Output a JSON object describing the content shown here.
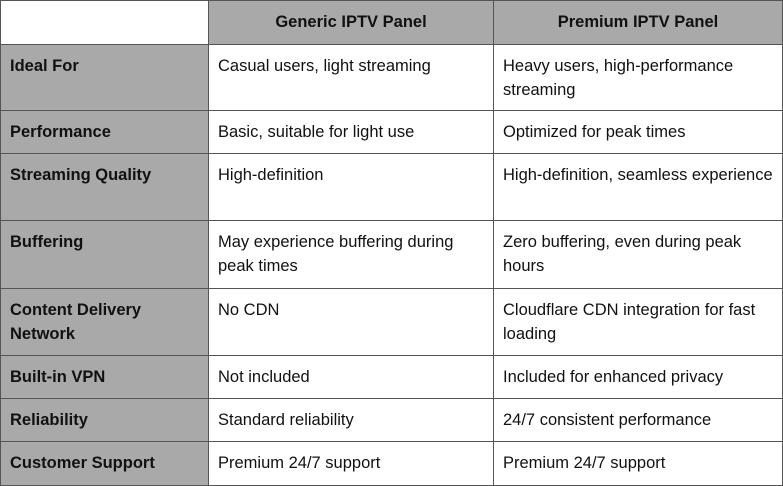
{
  "table": {
    "columns": [
      "Generic IPTV Panel",
      "Premium IPTV Panel"
    ],
    "rows": [
      [
        "Ideal For",
        "Casual users, light streaming",
        "Heavy users, high-performance streaming"
      ],
      [
        "Performance",
        "Basic, suitable for light use",
        "Optimized for peak times"
      ],
      [
        "Streaming Quality",
        "High-definition",
        "High-definition, seamless experience"
      ],
      [
        "Buffering",
        "May experience buffering during peak times",
        "Zero buffering, even during peak hours"
      ],
      [
        "Content Delivery Network",
        "No CDN",
        "Cloudflare CDN integration for fast loading"
      ],
      [
        "Built-in VPN",
        "Not included",
        "Included for enhanced privacy"
      ],
      [
        "Reliability",
        "Standard reliability",
        "24/7 consistent performance"
      ],
      [
        "Customer Support",
        "Premium 24/7 support",
        "Premium 24/7 support"
      ]
    ]
  }
}
